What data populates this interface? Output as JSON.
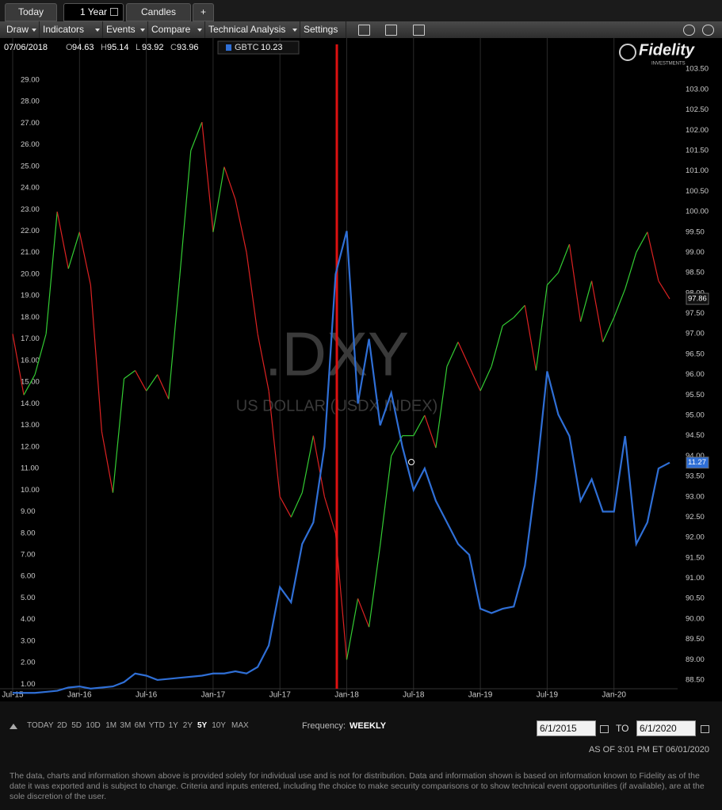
{
  "tabs": [
    "Today",
    "1 Year",
    "Candles",
    "+"
  ],
  "menu": [
    "Draw",
    "Indicators",
    "Events",
    "Compare",
    "Technical Analysis",
    "Settings"
  ],
  "info": {
    "date": "07/06/2018",
    "ohlc": [
      {
        "key": "O",
        "value": 94.63
      },
      {
        "key": "H",
        "value": 95.14
      },
      {
        "key": "L",
        "value": 93.92
      },
      {
        "key": "C",
        "value": 93.96
      }
    ],
    "legend_symbol": "GBTC",
    "legend_value": 10.23
  },
  "logo": {
    "name": "Fidelity",
    "sub": "INVESTMENTS"
  },
  "watermark": {
    "symbol": ".DXY",
    "name": "US DOLLAR (USDX INDEX)"
  },
  "chart_data": {
    "type": "line",
    "categories": [
      "Jul-15",
      null,
      null,
      null,
      null,
      null,
      "Jan-16",
      null,
      null,
      null,
      null,
      null,
      "Jul-16",
      null,
      null,
      null,
      null,
      null,
      "Jan-17",
      null,
      null,
      null,
      null,
      null,
      "Jul-17",
      null,
      null,
      null,
      null,
      null,
      "Jan-18",
      null,
      null,
      null,
      null,
      null,
      "Jul-18",
      null,
      null,
      null,
      null,
      null,
      "Jan-19",
      null,
      null,
      null,
      null,
      null,
      "Jul-19",
      null,
      null,
      null,
      null,
      null,
      "Jan-20",
      null,
      null,
      null,
      null,
      null
    ],
    "series": [
      {
        "name": ".DXY",
        "axis": "y2",
        "up_color": "#33cc33",
        "down_color": "#dd2222",
        "values": [
          97.0,
          95.5,
          96.0,
          97.0,
          100.0,
          98.6,
          99.5,
          98.2,
          94.6,
          93.1,
          95.9,
          96.1,
          95.6,
          96.0,
          95.4,
          98.4,
          101.5,
          102.2,
          99.5,
          101.1,
          100.3,
          99.0,
          97.0,
          95.6,
          93.0,
          92.5,
          93.1,
          94.5,
          93.0,
          92.1,
          89.0,
          90.5,
          89.8,
          91.8,
          94.0,
          94.5,
          94.5,
          95.0,
          94.2,
          96.2,
          96.8,
          96.2,
          95.6,
          96.2,
          97.2,
          97.4,
          97.7,
          96.1,
          98.2,
          98.5,
          99.2,
          97.3,
          98.3,
          96.8,
          97.4,
          98.1,
          99.0,
          99.5,
          98.3,
          97.86
        ]
      },
      {
        "name": "GBTC",
        "color": "#2f6fd6",
        "values": [
          0.6,
          0.6,
          0.6,
          0.65,
          0.7,
          0.85,
          0.9,
          0.8,
          0.85,
          0.9,
          1.1,
          1.5,
          1.4,
          1.2,
          1.25,
          1.3,
          1.35,
          1.4,
          1.5,
          1.5,
          1.6,
          1.5,
          1.8,
          2.8,
          5.5,
          4.8,
          7.5,
          8.5,
          12.0,
          20.0,
          22.0,
          14.0,
          17.0,
          13.0,
          14.5,
          12.0,
          10.0,
          11.0,
          9.5,
          8.5,
          7.5,
          7.0,
          4.5,
          4.3,
          4.5,
          4.6,
          6.5,
          10.5,
          15.5,
          13.5,
          12.5,
          9.5,
          10.5,
          9.0,
          9.0,
          12.5,
          7.5,
          8.5,
          11.0,
          11.27
        ]
      }
    ],
    "ylim": [
      0.5,
      30.5
    ],
    "yticks": [
      {
        "value": 1,
        "label": "1.00"
      },
      {
        "value": 2,
        "label": "2.00"
      },
      {
        "value": 3,
        "label": "3.00"
      },
      {
        "value": 4,
        "label": "4.00"
      },
      {
        "value": 5,
        "label": "5.00"
      },
      {
        "value": 6,
        "label": "6.00"
      },
      {
        "value": 7,
        "label": "7.00"
      },
      {
        "value": 8,
        "label": "8.00"
      },
      {
        "value": 9,
        "label": "9.00"
      },
      {
        "value": 10,
        "label": "10.00"
      },
      {
        "value": 11,
        "label": "11.00"
      },
      {
        "value": 12,
        "label": "12.00"
      },
      {
        "value": 13,
        "label": "13.00"
      },
      {
        "value": 14,
        "label": "14.00"
      },
      {
        "value": 15,
        "label": "15.00"
      },
      {
        "value": 16,
        "label": "16.00"
      },
      {
        "value": 17,
        "label": "17.00"
      },
      {
        "value": 18,
        "label": "18.00"
      },
      {
        "value": 19,
        "label": "19.00"
      },
      {
        "value": 20,
        "label": "20.00"
      },
      {
        "value": 21,
        "label": "21.00"
      },
      {
        "value": 22,
        "label": "22.00"
      },
      {
        "value": 23,
        "label": "23.00"
      },
      {
        "value": 24,
        "label": "24.00"
      },
      {
        "value": 25,
        "label": "25.00"
      },
      {
        "value": 26,
        "label": "26.00"
      },
      {
        "value": 27,
        "label": "27.00"
      },
      {
        "value": 28,
        "label": "28.00"
      },
      {
        "value": 29,
        "label": "29.00"
      }
    ],
    "y2lim": [
      88.13,
      104.03
    ],
    "y2ticks": [
      {
        "value": 88.5,
        "label": "88.50"
      },
      {
        "value": 89,
        "label": "89.00"
      },
      {
        "value": 89.5,
        "label": "89.50"
      },
      {
        "value": 90,
        "label": "90.00"
      },
      {
        "value": 90.5,
        "label": "90.50"
      },
      {
        "value": 91,
        "label": "91.00"
      },
      {
        "value": 91.5,
        "label": "91.50"
      },
      {
        "value": 92,
        "label": "92.00"
      },
      {
        "value": 92.5,
        "label": "92.50"
      },
      {
        "value": 93,
        "label": "93.00"
      },
      {
        "value": 93.5,
        "label": "93.50"
      },
      {
        "value": 94,
        "label": "94.00"
      },
      {
        "value": 94.5,
        "label": "94.50"
      },
      {
        "value": 95,
        "label": "95.00"
      },
      {
        "value": 95.5,
        "label": "95.50"
      },
      {
        "value": 96,
        "label": "96.00"
      },
      {
        "value": 96.5,
        "label": "96.50"
      },
      {
        "value": 97,
        "label": "97.00"
      },
      {
        "value": 97.5,
        "label": "97.50"
      },
      {
        "value": 98,
        "label": "98.00"
      },
      {
        "value": 98.5,
        "label": "98.50"
      },
      {
        "value": 99,
        "label": "99.00"
      },
      {
        "value": 99.5,
        "label": "99.50"
      },
      {
        "value": 100,
        "label": "100.00"
      },
      {
        "value": 100.5,
        "label": "100.50"
      },
      {
        "value": 101,
        "label": "101.00"
      },
      {
        "value": 101.5,
        "label": "101.50"
      },
      {
        "value": 102,
        "label": "102.00"
      },
      {
        "value": 102.5,
        "label": "102.50"
      },
      {
        "value": 103,
        "label": "103.00"
      },
      {
        "value": 103.5,
        "label": "103.50"
      }
    ],
    "xgrid": true,
    "ygrid": false
  },
  "ranges": [
    "TODAY",
    "2D",
    "5D",
    "10D",
    "1M",
    "3M",
    "6M",
    "YTD",
    "1Y",
    "2Y",
    "5Y",
    "10Y",
    "MAX"
  ],
  "active_range": "5Y",
  "frequency": {
    "label": "Frequency:",
    "value": "WEEKLY"
  },
  "dates": {
    "from": "6/1/2015",
    "to_label": "TO",
    "to": "6/1/2020"
  },
  "as_of": "AS OF 3:01 PM ET 06/01/2020",
  "disclaimer": "The data, charts and information shown above is provided solely for individual use and is not for distribution.  Data and information shown is based on information known to Fidelity as of the date it was exported and is subject to change. Criteria and inputs entered, including the choice to make security comparisons or to show technical event opportunities (if available), are at the sole discretion of the user."
}
